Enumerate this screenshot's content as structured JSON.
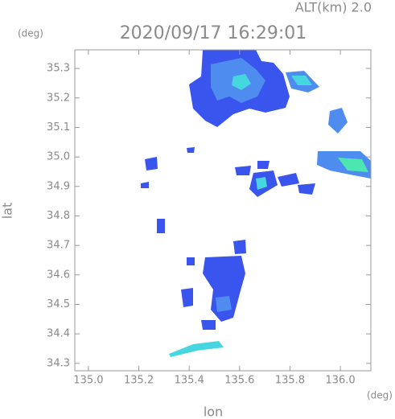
{
  "chart_data": {
    "type": "radar-map",
    "title": "2020/09/17 16:29:01",
    "altitude": "ALT(km)  2.0",
    "y_unit": "(deg)",
    "x_unit": "(deg)",
    "xlabel": "lon",
    "ylabel": "lat",
    "xlim": [
      134.946,
      136.121
    ],
    "ylim": [
      34.275,
      35.363
    ],
    "xticks": [
      {
        "value": 135.0,
        "label": "135.0"
      },
      135.2,
      135.4,
      135.6,
      135.8,
      {
        "value": 136.0,
        "label": "136.0"
      }
    ],
    "yticks": [
      34.3,
      34.4,
      34.5,
      34.6,
      34.7,
      34.8,
      34.9,
      {
        "value": 35.0,
        "label": "35.0"
      },
      35.1,
      35.2,
      35.3
    ]
  }
}
